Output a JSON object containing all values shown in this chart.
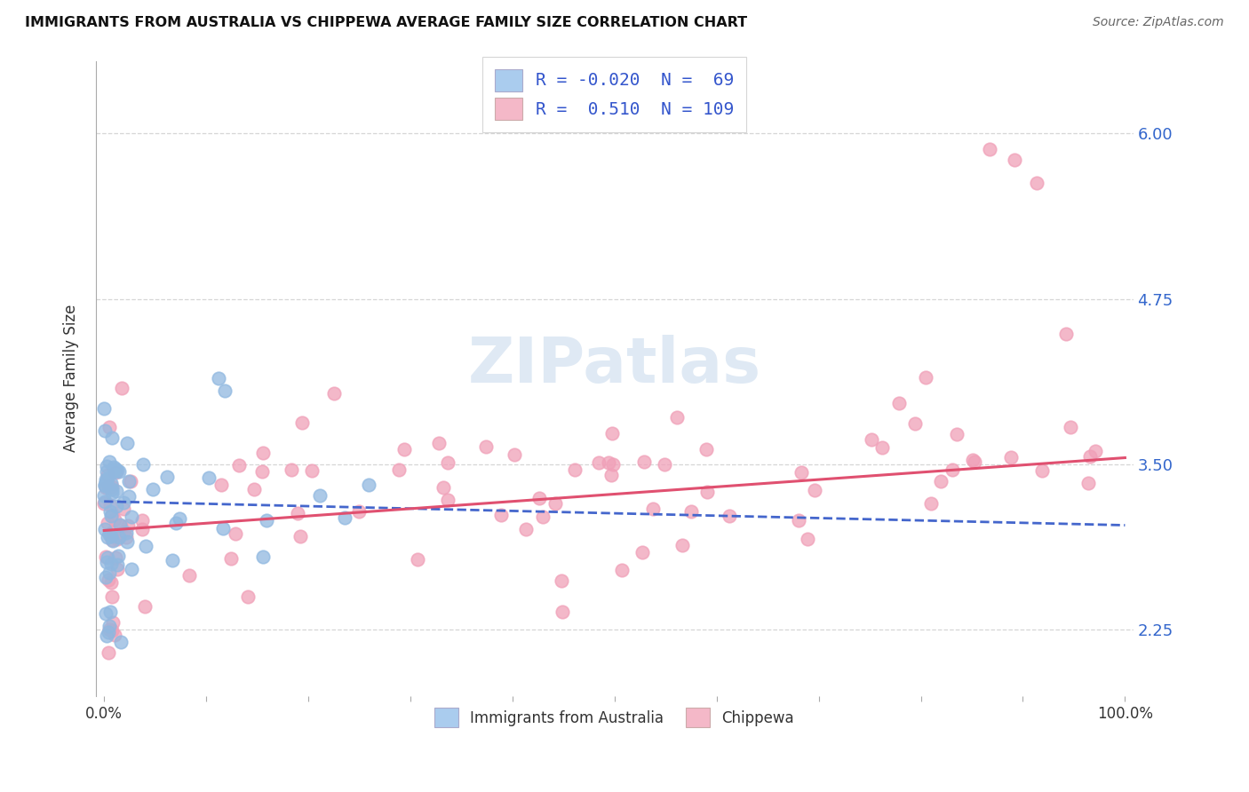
{
  "title": "IMMIGRANTS FROM AUSTRALIA VS CHIPPEWA AVERAGE FAMILY SIZE CORRELATION CHART",
  "source": "Source: ZipAtlas.com",
  "ylabel": "Average Family Size",
  "yticks": [
    2.25,
    3.5,
    4.75,
    6.0
  ],
  "legend_bottom": [
    "Immigrants from Australia",
    "Chippewa"
  ],
  "australia_color": "#90b8e0",
  "chippewa_color": "#f0a0b8",
  "australia_line_color": "#4466cc",
  "chippewa_line_color": "#e05070",
  "watermark": "ZIPatlas",
  "background_color": "#ffffff",
  "australia_R": -0.02,
  "australia_N": 69,
  "chippewa_R": 0.51,
  "chippewa_N": 109,
  "australia_intercept": 3.22,
  "australia_slope": -0.18,
  "chippewa_intercept": 3.0,
  "chippewa_slope": 0.55,
  "legend_R1": "R = -0.020",
  "legend_N1": "N =  69",
  "legend_R2": "R =  0.510",
  "legend_N2": "N = 109",
  "legend_box1_color": "#aaccee",
  "legend_box2_color": "#f4b8c8"
}
